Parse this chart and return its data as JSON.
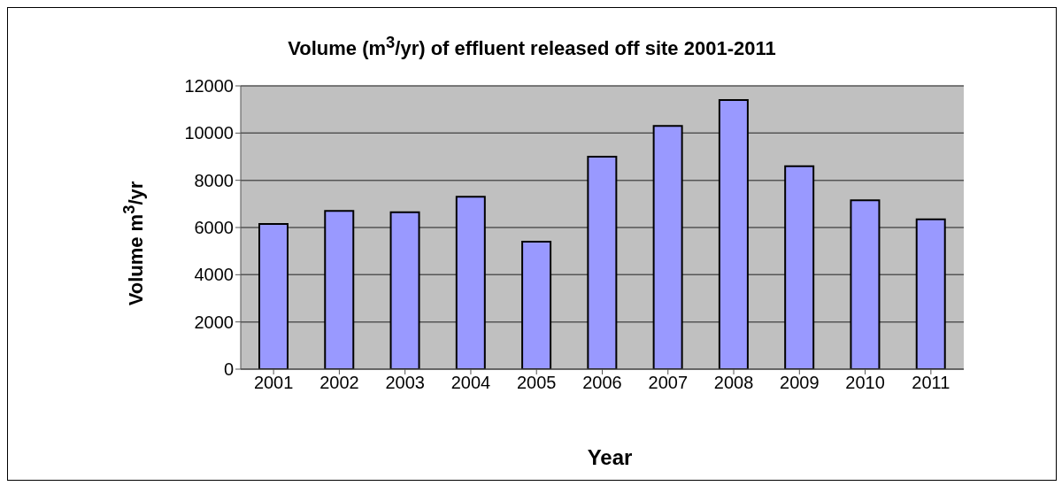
{
  "chart_data": {
    "type": "bar",
    "title": "Volume (m$^{3}$/yr) of effluent released off site 2001-2011",
    "xlabel": "Year",
    "ylabel": "Volume m$^{3}$/yr",
    "categories": [
      "2001",
      "2002",
      "2003",
      "2004",
      "2005",
      "2006",
      "2007",
      "2008",
      "2009",
      "2010",
      "2011"
    ],
    "values": [
      6150,
      6700,
      6650,
      7300,
      5400,
      9000,
      10300,
      11400,
      8600,
      7150,
      6350
    ],
    "color": "#9999ff",
    "ylim": [
      0,
      12000
    ],
    "yticks": [
      0,
      2000,
      4000,
      6000,
      8000,
      10000,
      12000
    ],
    "grid": "y",
    "legend": false
  }
}
